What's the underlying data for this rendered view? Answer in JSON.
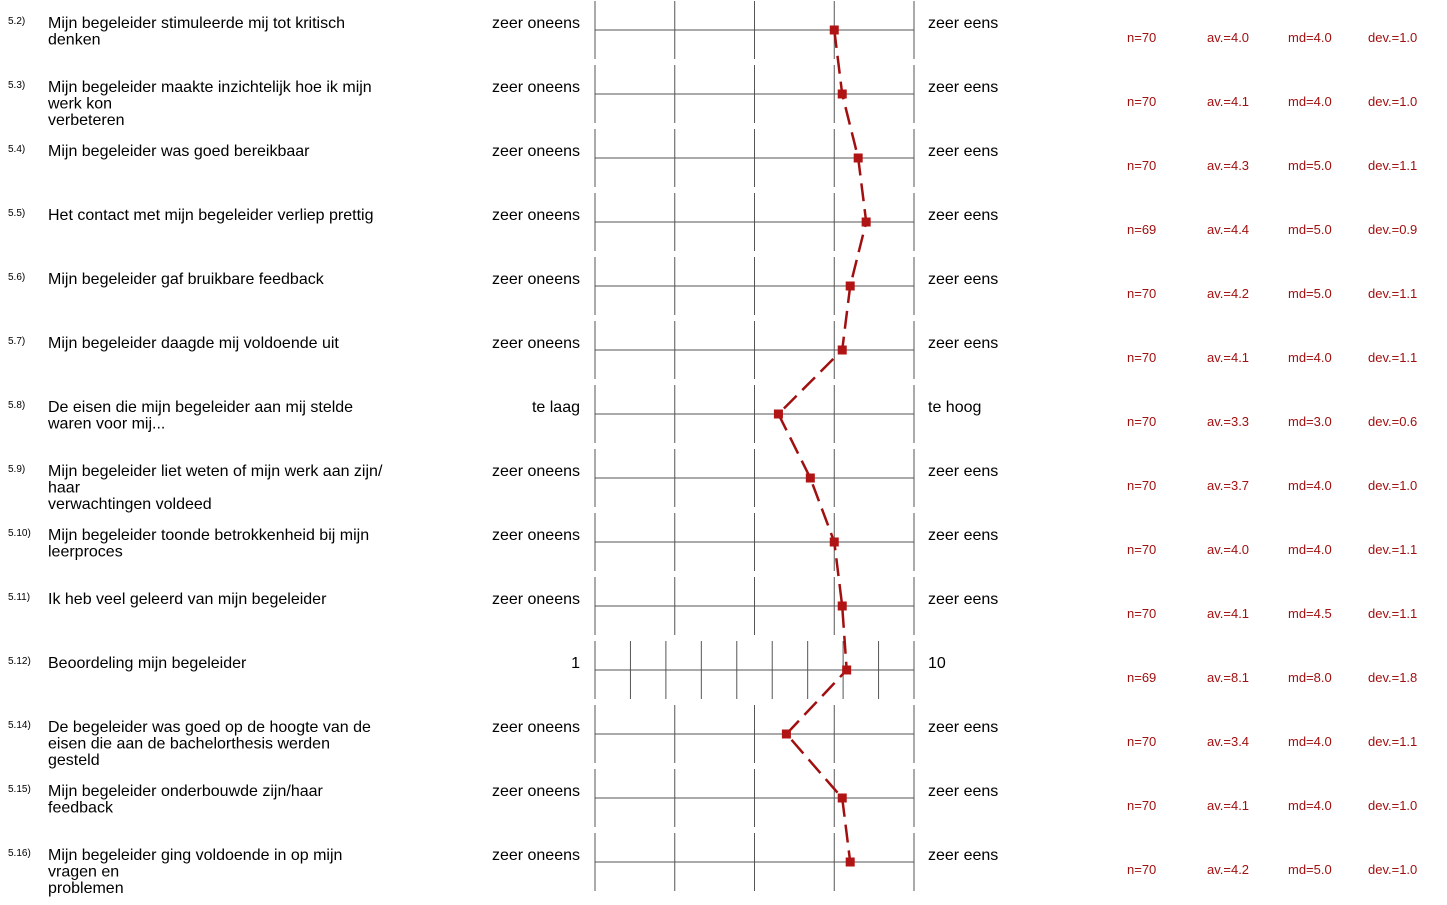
{
  "colors": {
    "profile": "#a01010",
    "marker": "#b01414",
    "text": "#000000",
    "scale": "#555555"
  },
  "chart_data": {
    "type": "line",
    "orientation": "horizontal-profile",
    "title": "",
    "items": [
      {
        "num": "5.2)",
        "lines": [
          "Mijn begeleider stimuleerde mij tot kritisch",
          "denken"
        ],
        "left": "zeer oneens",
        "right": "zeer eens",
        "scale_points": 5,
        "n": "n=70",
        "av": "av.=4.0",
        "md": "md=4.0",
        "dev": "dev.=1.0",
        "value": 4.0
      },
      {
        "num": "5.3)",
        "lines": [
          "Mijn begeleider maakte inzichtelijk hoe ik mijn",
          "werk kon",
          "verbeteren"
        ],
        "left": "zeer oneens",
        "right": "zeer eens",
        "scale_points": 5,
        "n": "n=70",
        "av": "av.=4.1",
        "md": "md=4.0",
        "dev": "dev.=1.0",
        "value": 4.1
      },
      {
        "num": "5.4)",
        "lines": [
          "Mijn begeleider was goed bereikbaar"
        ],
        "left": "zeer oneens",
        "right": "zeer eens",
        "scale_points": 5,
        "n": "n=70",
        "av": "av.=4.3",
        "md": "md=5.0",
        "dev": "dev.=1.1",
        "value": 4.3
      },
      {
        "num": "5.5)",
        "lines": [
          "Het contact met mijn begeleider verliep prettig"
        ],
        "left": "zeer oneens",
        "right": "zeer eens",
        "scale_points": 5,
        "n": "n=69",
        "av": "av.=4.4",
        "md": "md=5.0",
        "dev": "dev.=0.9",
        "value": 4.4
      },
      {
        "num": "5.6)",
        "lines": [
          "Mijn begeleider gaf bruikbare feedback"
        ],
        "left": "zeer oneens",
        "right": "zeer eens",
        "scale_points": 5,
        "n": "n=70",
        "av": "av.=4.2",
        "md": "md=5.0",
        "dev": "dev.=1.1",
        "value": 4.2
      },
      {
        "num": "5.7)",
        "lines": [
          "Mijn begeleider daagde mij voldoende uit"
        ],
        "left": "zeer oneens",
        "right": "zeer eens",
        "scale_points": 5,
        "n": "n=70",
        "av": "av.=4.1",
        "md": "md=4.0",
        "dev": "dev.=1.1",
        "value": 4.1
      },
      {
        "num": "5.8)",
        "lines": [
          "De eisen die mijn begeleider aan mij stelde",
          "waren voor mij..."
        ],
        "left": "te laag",
        "right": "te hoog",
        "scale_points": 5,
        "n": "n=70",
        "av": "av.=3.3",
        "md": "md=3.0",
        "dev": "dev.=0.6",
        "value": 3.3
      },
      {
        "num": "5.9)",
        "lines": [
          "Mijn begeleider liet weten of mijn werk aan zijn/",
          "haar",
          "verwachtingen voldeed"
        ],
        "left": "zeer oneens",
        "right": "zeer eens",
        "scale_points": 5,
        "n": "n=70",
        "av": "av.=3.7",
        "md": "md=4.0",
        "dev": "dev.=1.0",
        "value": 3.7
      },
      {
        "num": "5.10)",
        "lines": [
          "Mijn begeleider toonde betrokkenheid bij mijn",
          "leerproces"
        ],
        "left": "zeer oneens",
        "right": "zeer eens",
        "scale_points": 5,
        "n": "n=70",
        "av": "av.=4.0",
        "md": "md=4.0",
        "dev": "dev.=1.1",
        "value": 4.0
      },
      {
        "num": "5.11)",
        "lines": [
          "Ik heb veel geleerd van mijn begeleider"
        ],
        "left": "zeer oneens",
        "right": "zeer eens",
        "scale_points": 5,
        "n": "n=70",
        "av": "av.=4.1",
        "md": "md=4.5",
        "dev": "dev.=1.1",
        "value": 4.1
      },
      {
        "num": "5.12)",
        "lines": [
          "Beoordeling mijn begeleider"
        ],
        "left": "1",
        "right": "10",
        "scale_points": 10,
        "n": "n=69",
        "av": "av.=8.1",
        "md": "md=8.0",
        "dev": "dev.=1.8",
        "value": 8.1
      },
      {
        "num": "5.14)",
        "lines": [
          "De begeleider was goed op de hoogte van de",
          "eisen die aan de bachelorthesis werden",
          "gesteld"
        ],
        "left": "zeer oneens",
        "right": "zeer eens",
        "scale_points": 5,
        "n": "n=70",
        "av": "av.=3.4",
        "md": "md=4.0",
        "dev": "dev.=1.1",
        "value": 3.4
      },
      {
        "num": "5.15)",
        "lines": [
          "Mijn begeleider onderbouwde zijn/haar",
          "feedback"
        ],
        "left": "zeer oneens",
        "right": "zeer eens",
        "scale_points": 5,
        "n": "n=70",
        "av": "av.=4.1",
        "md": "md=4.0",
        "dev": "dev.=1.0",
        "value": 4.1
      },
      {
        "num": "5.16)",
        "lines": [
          "Mijn begeleider ging voldoende in op mijn",
          "vragen en",
          "problemen"
        ],
        "left": "zeer oneens",
        "right": "zeer eens",
        "scale_points": 5,
        "n": "n=70",
        "av": "av.=4.2",
        "md": "md=5.0",
        "dev": "dev.=1.0",
        "value": 4.2
      }
    ]
  }
}
